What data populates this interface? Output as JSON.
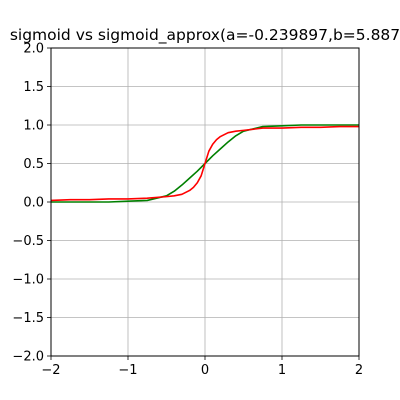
{
  "chart_data": {
    "type": "line",
    "title": "sigmoid vs sigmoid_approx(a=-0.239897,b=5.887",
    "xlabel": "",
    "ylabel": "",
    "xlim": [
      -2,
      2
    ],
    "ylim": [
      -2,
      2
    ],
    "grid": true,
    "x_ticks": [
      -2,
      -1,
      0,
      1,
      2
    ],
    "x_tick_labels": [
      "−2",
      "−1",
      "0",
      "1",
      "2"
    ],
    "y_ticks": [
      -2.0,
      -1.5,
      -1.0,
      -0.5,
      0.0,
      0.5,
      1.0,
      1.5,
      2.0
    ],
    "y_tick_labels": [
      "−2.0",
      "−1.5",
      "−1.0",
      "−0.5",
      "0.0",
      "0.5",
      "1.0",
      "1.5",
      "2.0"
    ],
    "series": [
      {
        "color": "#008000",
        "x": [
          -2.0,
          -1.75,
          -1.5,
          -1.25,
          -1.0,
          -0.75,
          -0.5,
          -0.4,
          -0.3,
          -0.2,
          -0.1,
          0.0,
          0.1,
          0.2,
          0.3,
          0.4,
          0.5,
          0.75,
          1.0,
          1.25,
          1.5,
          1.75,
          2.0
        ],
        "y": [
          0.0,
          0.0,
          0.0,
          0.0,
          0.01,
          0.02,
          0.08,
          0.14,
          0.22,
          0.31,
          0.4,
          0.5,
          0.6,
          0.69,
          0.78,
          0.86,
          0.92,
          0.98,
          0.99,
          1.0,
          1.0,
          1.0,
          1.0
        ]
      },
      {
        "color": "#ff0000",
        "x": [
          -2.0,
          -1.75,
          -1.5,
          -1.25,
          -1.0,
          -0.75,
          -0.5,
          -0.4,
          -0.3,
          -0.2,
          -0.15,
          -0.1,
          -0.05,
          0.0,
          0.05,
          0.1,
          0.15,
          0.2,
          0.3,
          0.4,
          0.5,
          0.75,
          1.0,
          1.25,
          1.5,
          1.75,
          2.0
        ],
        "y": [
          0.02,
          0.03,
          0.03,
          0.04,
          0.04,
          0.05,
          0.07,
          0.08,
          0.1,
          0.15,
          0.19,
          0.25,
          0.34,
          0.5,
          0.66,
          0.75,
          0.81,
          0.85,
          0.9,
          0.92,
          0.93,
          0.96,
          0.96,
          0.97,
          0.97,
          0.98,
          0.98
        ]
      }
    ]
  }
}
